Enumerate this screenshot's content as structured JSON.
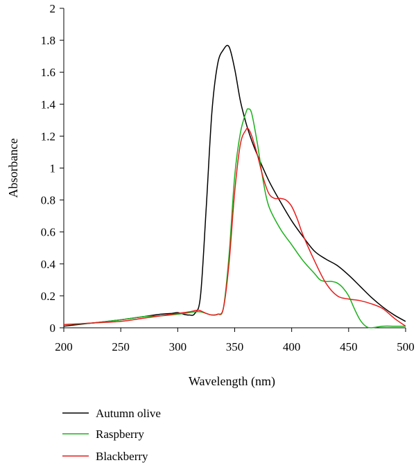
{
  "chart_data": {
    "type": "line",
    "title": "",
    "xlabel": "Wavelength (nm)",
    "ylabel": "Absorbance",
    "xlim": [
      200,
      500
    ],
    "ylim": [
      0,
      2
    ],
    "xticks": [
      "200",
      "250",
      "300",
      "350",
      "400",
      "450",
      "500"
    ],
    "yticks": [
      "0",
      "0.2",
      "0.4",
      "0.6",
      "0.8",
      "1",
      "1.2",
      "1.4",
      "1.6",
      "1.8",
      "2"
    ],
    "grid": false,
    "legend_position": "bottom-left",
    "series": [
      {
        "name": "Autumn olive",
        "color": "#000000",
        "x": [
          200,
          225,
          250,
          270,
          285,
          295,
          300,
          305,
          310,
          315,
          320,
          325,
          330,
          335,
          340,
          345,
          350,
          355,
          360,
          365,
          370,
          380,
          390,
          400,
          410,
          420,
          430,
          440,
          450,
          460,
          470,
          480,
          490,
          500
        ],
        "y": [
          0.01,
          0.03,
          0.05,
          0.07,
          0.085,
          0.09,
          0.095,
          0.085,
          0.08,
          0.09,
          0.2,
          0.75,
          1.35,
          1.65,
          1.74,
          1.76,
          1.62,
          1.42,
          1.28,
          1.17,
          1.08,
          0.92,
          0.79,
          0.67,
          0.57,
          0.48,
          0.43,
          0.39,
          0.33,
          0.26,
          0.19,
          0.13,
          0.08,
          0.04
        ]
      },
      {
        "name": "Raspberry",
        "color": "#1ab01a",
        "x": [
          200,
          225,
          250,
          270,
          285,
          300,
          310,
          315,
          320,
          325,
          330,
          335,
          340,
          345,
          350,
          355,
          360,
          362,
          365,
          370,
          375,
          380,
          390,
          400,
          410,
          420,
          425,
          430,
          435,
          440,
          445,
          450,
          455,
          460,
          465,
          470,
          480,
          490,
          500
        ],
        "y": [
          0.02,
          0.03,
          0.05,
          0.07,
          0.075,
          0.085,
          0.095,
          0.1,
          0.1,
          0.09,
          0.08,
          0.085,
          0.12,
          0.45,
          0.95,
          1.22,
          1.35,
          1.37,
          1.34,
          1.15,
          0.92,
          0.76,
          0.62,
          0.52,
          0.42,
          0.34,
          0.3,
          0.29,
          0.29,
          0.28,
          0.25,
          0.2,
          0.12,
          0.05,
          0.01,
          0.0,
          0.01,
          0.01,
          0.01
        ]
      },
      {
        "name": "Blackberry",
        "color": "#e81c1c",
        "x": [
          200,
          225,
          250,
          270,
          285,
          300,
          310,
          318,
          322,
          325,
          330,
          335,
          340,
          345,
          350,
          355,
          360,
          362,
          365,
          370,
          375,
          380,
          385,
          390,
          395,
          400,
          405,
          410,
          420,
          430,
          440,
          450,
          460,
          470,
          480,
          490,
          500
        ],
        "y": [
          0.02,
          0.03,
          0.04,
          0.06,
          0.075,
          0.09,
          0.1,
          0.11,
          0.1,
          0.09,
          0.08,
          0.085,
          0.12,
          0.4,
          0.85,
          1.15,
          1.24,
          1.245,
          1.2,
          1.08,
          0.94,
          0.84,
          0.81,
          0.81,
          0.8,
          0.76,
          0.68,
          0.58,
          0.42,
          0.28,
          0.2,
          0.18,
          0.17,
          0.15,
          0.12,
          0.06,
          0.01
        ]
      }
    ]
  }
}
